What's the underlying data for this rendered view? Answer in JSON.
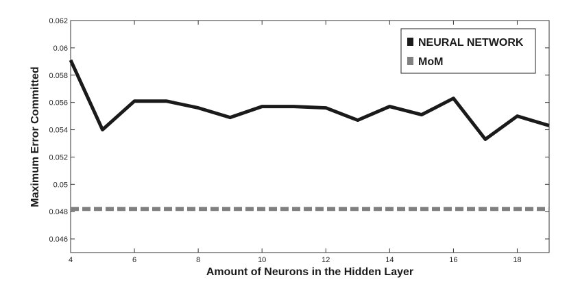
{
  "chart_data": {
    "type": "line",
    "xlabel": "Amount of Neurons in the Hidden Layer",
    "ylabel": "Maximum Error Committed",
    "xlim": [
      4,
      19
    ],
    "ylim": [
      0.045,
      0.062
    ],
    "x_ticks": [
      4,
      6,
      8,
      10,
      12,
      14,
      16,
      18
    ],
    "y_ticks": [
      0.046,
      0.048,
      0.05,
      0.052,
      0.054,
      0.056,
      0.058,
      0.06,
      0.062
    ],
    "y_tick_labels": [
      "0.046",
      "0.048",
      "0.05",
      "0.052",
      "0.054",
      "0.056",
      "0.058",
      "0.06",
      "0.062"
    ],
    "grid": false,
    "legend_position": "top-right",
    "series": [
      {
        "name": "NEURAL NETWORK",
        "color": "#1a1a1a",
        "style": "solid",
        "x": [
          4,
          5,
          6,
          7,
          8,
          9,
          10,
          11,
          12,
          13,
          14,
          15,
          16,
          17,
          18,
          19
        ],
        "values": [
          0.0591,
          0.054,
          0.0561,
          0.0561,
          0.0556,
          0.0549,
          0.0557,
          0.0557,
          0.0556,
          0.0547,
          0.0557,
          0.0551,
          0.0563,
          0.0533,
          0.055,
          0.0543
        ]
      },
      {
        "name": "MoM",
        "color": "#808080",
        "style": "dashed",
        "x": [
          4,
          19
        ],
        "values": [
          0.0482,
          0.0482
        ]
      }
    ]
  }
}
